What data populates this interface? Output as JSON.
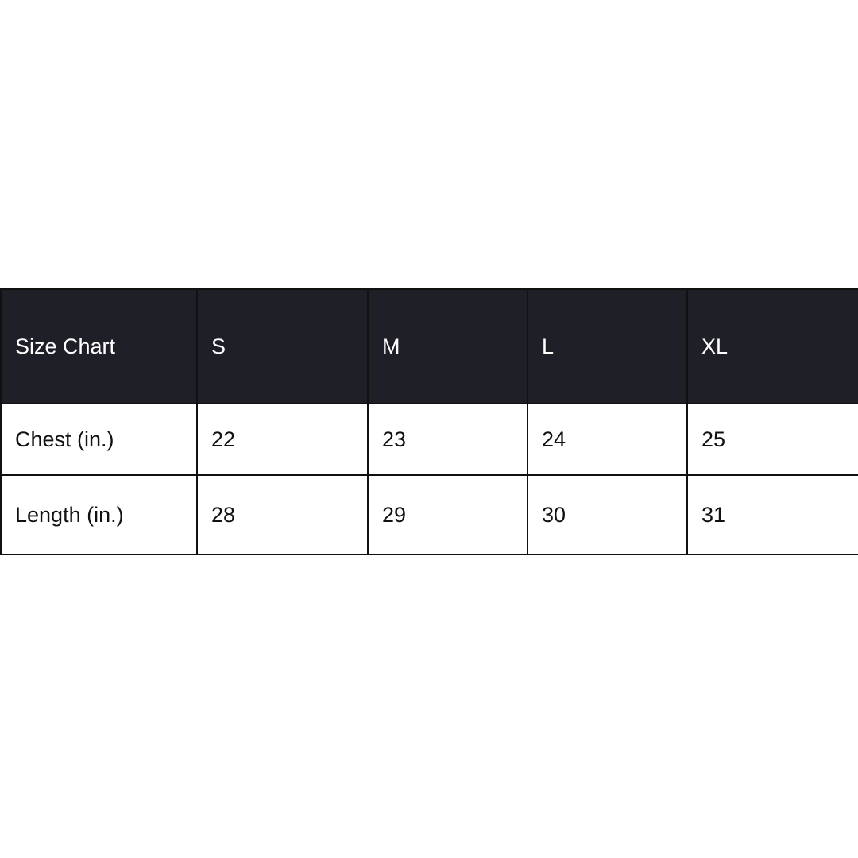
{
  "chart_data": {
    "type": "table",
    "columns": [
      "Size Chart",
      "S",
      "M",
      "L",
      "XL"
    ],
    "rows": [
      {
        "label": "Chest (in.)",
        "values": [
          22,
          23,
          24,
          25
        ]
      },
      {
        "label": "Length (in.)",
        "values": [
          28,
          29,
          30,
          31
        ]
      }
    ],
    "header_bg": "#1f1f28"
  }
}
